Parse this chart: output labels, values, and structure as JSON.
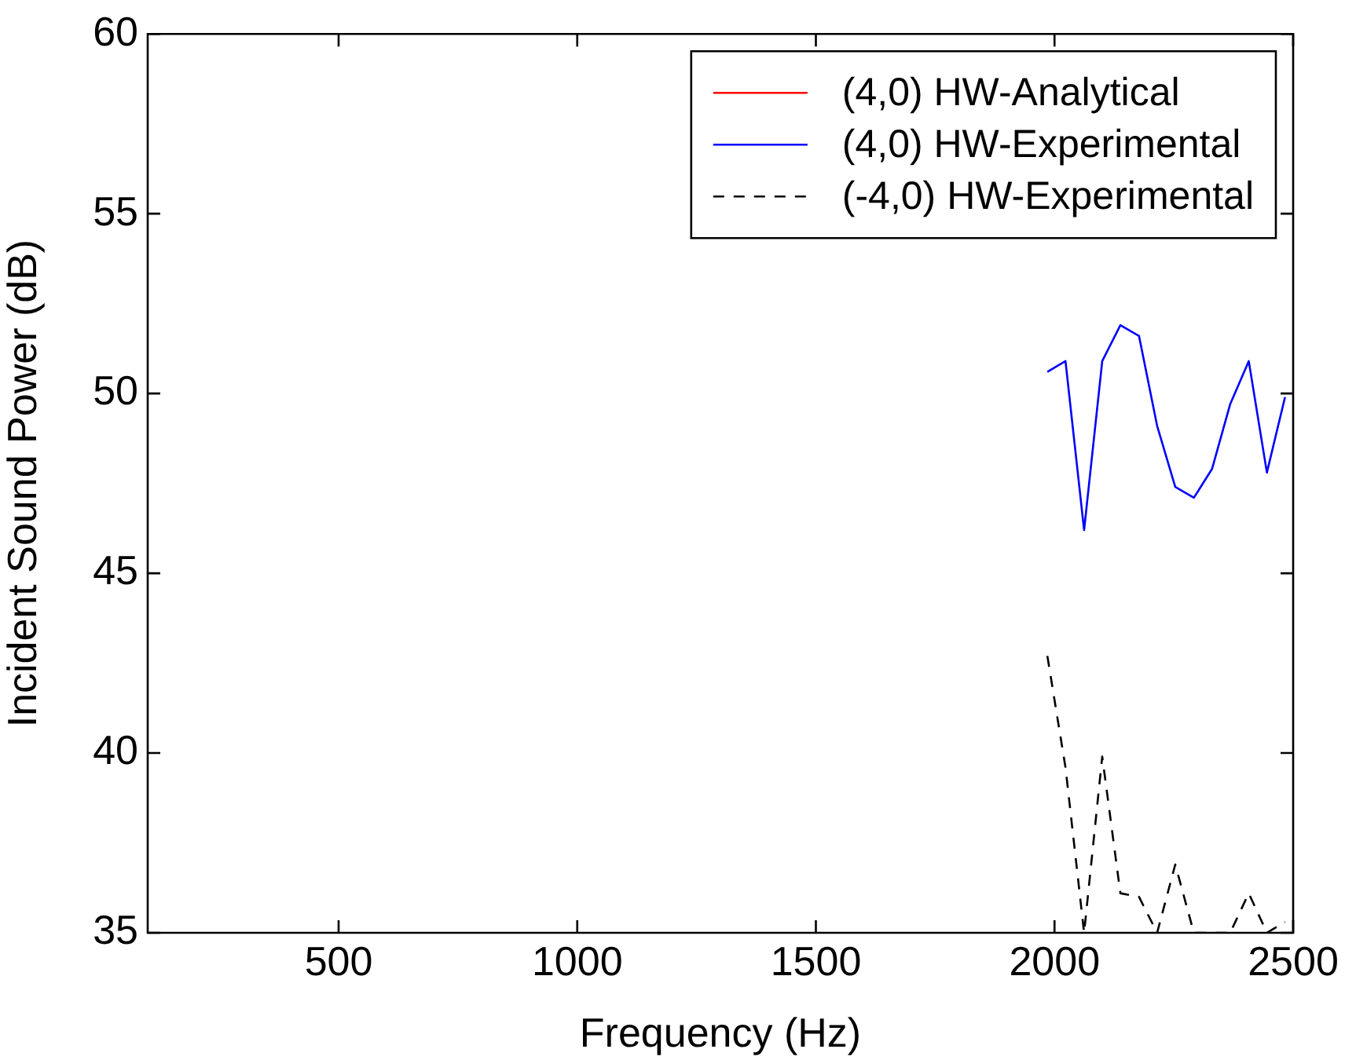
{
  "chart_data": {
    "type": "line",
    "xlabel": "Frequency (Hz)",
    "ylabel": "Incident Sound Power (dB)",
    "x": [
      1985,
      2023,
      2062,
      2100,
      2138,
      2177,
      2215,
      2253,
      2292,
      2330,
      2368,
      2407,
      2445,
      2483
    ],
    "series": [
      {
        "name": "(4,0) HW-Analytical",
        "color": "#ff0000",
        "values": [
          null,
          null,
          null,
          null,
          null,
          null,
          null,
          null,
          null,
          null,
          null,
          null,
          null,
          null
        ]
      },
      {
        "name": "(4,0) HW-Experimental",
        "color": "#0000ff",
        "values": [
          50.6,
          50.9,
          46.2,
          50.9,
          51.9,
          51.6,
          49.1,
          47.4,
          47.1,
          47.9,
          49.7,
          50.9,
          47.8,
          49.9
        ]
      },
      {
        "name": "(-4,0) HW-Experimental",
        "color": "#000000",
        "line_style": "dashed",
        "values": [
          42.7,
          39.6,
          35,
          39.9,
          36.1,
          36.0,
          35,
          36.9,
          35,
          35,
          35,
          36.1,
          35,
          35.3
        ]
      }
    ],
    "xlim": [
      100,
      2500
    ],
    "xticks": [
      500,
      1000,
      1500,
      2000,
      2500
    ],
    "ylim": [
      35,
      60
    ],
    "yticks": [
      35,
      40,
      45,
      50,
      55,
      60
    ],
    "grid": false,
    "legend": "top right",
    "marker": "none",
    "line_style": "solid"
  }
}
